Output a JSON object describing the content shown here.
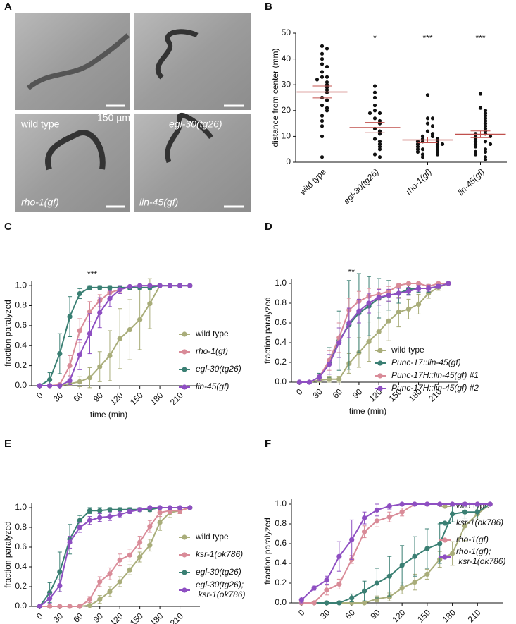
{
  "panel_a": {
    "panel": "A",
    "images": [
      "wild type",
      "egl-30(tg26)",
      "rho-1(gf)",
      "lin-45(gf)"
    ],
    "scale_bar": "150 µm"
  },
  "chart_data": [
    {
      "panel": "B",
      "type": "dotplot",
      "ylabel": "distance from center (mm)",
      "categories": [
        "wild type",
        "egl-30(tg26)",
        "rho-1(gf)",
        "lin-45(gf)"
      ],
      "significance": [
        null,
        "*",
        "***",
        "***"
      ],
      "values": [
        [
          45,
          44,
          42,
          40,
          38,
          37,
          35,
          33,
          33,
          32,
          31,
          30,
          29,
          28,
          27,
          25,
          24,
          22,
          21,
          20,
          18,
          16,
          14,
          10,
          2
        ],
        [
          29.5,
          27,
          25,
          22,
          20,
          19,
          19,
          17,
          16,
          15,
          13,
          12,
          11,
          9,
          8,
          7,
          6,
          5,
          3,
          2
        ],
        [
          26,
          17,
          17,
          15,
          14,
          12,
          11,
          10,
          10,
          9,
          9,
          8,
          8,
          8,
          7,
          7,
          7,
          6,
          6,
          5,
          5,
          5,
          4,
          4,
          3,
          3,
          2
        ],
        [
          26.5,
          21,
          20,
          19,
          18,
          17,
          16,
          15,
          14,
          13,
          12,
          11,
          11,
          10,
          10,
          9,
          8,
          8,
          7,
          7,
          6,
          5,
          4,
          4,
          3,
          2,
          1
        ]
      ],
      "means": [
        27.2,
        13.4,
        8.6,
        10.8
      ],
      "sem": [
        2.3,
        2.0,
        1.1,
        1.3
      ],
      "color": "#111111",
      "mean_color": "#c0504d",
      "ylim": [
        0,
        50
      ],
      "yticks": [
        0,
        10,
        20,
        30,
        40,
        50
      ]
    },
    {
      "panel": "C",
      "type": "line",
      "xlabel": "time (min)",
      "ylabel": "fraction paralyzed",
      "annotation": "***",
      "legend": "right",
      "x": [
        0,
        15,
        30,
        45,
        60,
        75,
        90,
        105,
        120,
        135,
        150,
        165,
        180,
        195,
        210,
        225
      ],
      "xlim": [
        -12,
        240
      ],
      "xticks": [
        0,
        30,
        60,
        90,
        120,
        150,
        180,
        210
      ],
      "ylim": [
        0,
        1.05
      ],
      "yticks": [
        {
          "value": 0,
          "label": "0.0"
        },
        0.2,
        0.4,
        0.6,
        0.8,
        {
          "value": 1,
          "label": "1.0"
        }
      ],
      "series": [
        {
          "name": "wild type",
          "color": "#a9ad7a",
          "values": [
            0,
            0,
            0,
            0.02,
            0.04,
            0.08,
            0.19,
            0.3,
            0.47,
            0.56,
            0.66,
            0.82,
            1,
            1,
            1,
            1
          ],
          "errors": [
            0,
            0,
            0,
            0.02,
            0.05,
            0.1,
            0.15,
            0.25,
            0.3,
            0.3,
            0.3,
            0.25,
            0,
            0,
            0,
            0
          ]
        },
        {
          "name": "rho-1(gf)",
          "color": "#d98b98",
          "values": [
            0,
            0,
            0.01,
            0.2,
            0.55,
            0.74,
            0.85,
            0.93,
            0.96,
            0.99,
            1,
            1,
            1,
            1,
            1,
            1
          ],
          "errors": [
            0,
            0,
            0.01,
            0.1,
            0.12,
            0.1,
            0.06,
            0.04,
            0.03,
            0.01,
            0,
            0,
            0,
            0,
            0,
            0
          ]
        },
        {
          "name": "egl-30(tg26)",
          "color": "#3a7f73",
          "values": [
            0,
            0.06,
            0.32,
            0.69,
            0.92,
            0.98,
            0.98,
            0.98,
            0.98,
            0.98,
            0.98,
            0.98,
            1,
            1,
            1,
            1
          ],
          "errors": [
            0,
            0.07,
            0.2,
            0.2,
            0.05,
            0.02,
            0.02,
            0.02,
            0.02,
            0.02,
            0.02,
            0.02,
            0,
            0,
            0,
            0
          ]
        },
        {
          "name": "lin-45(gf)",
          "color": "#8e4fc2",
          "values": [
            0,
            0,
            0,
            0.05,
            0.31,
            0.52,
            0.73,
            0.87,
            0.96,
            0.99,
            1,
            1,
            1,
            1,
            1,
            1
          ],
          "errors": [
            0,
            0,
            0,
            0.04,
            0.15,
            0.2,
            0.15,
            0.08,
            0.04,
            0.01,
            0,
            0,
            0,
            0,
            0,
            0
          ]
        }
      ]
    },
    {
      "panel": "D",
      "type": "line",
      "xlabel": "time (min)",
      "ylabel": "fraction paralyzed",
      "annotation": "**",
      "legend": "right",
      "x": [
        0,
        15,
        30,
        45,
        60,
        75,
        90,
        105,
        120,
        135,
        150,
        165,
        180,
        195,
        210,
        225
      ],
      "xlim": [
        -12,
        240
      ],
      "xticks": [
        0,
        30,
        60,
        90,
        120,
        150,
        180,
        210
      ],
      "ylim": [
        0,
        1.05
      ],
      "yticks": [
        {
          "value": 0,
          "label": "0.0"
        },
        0.2,
        0.4,
        0.6,
        0.8,
        {
          "value": 1,
          "label": "1.0"
        }
      ],
      "series": [
        {
          "name": "wild type",
          "color": "#a9ad7a",
          "values": [
            0,
            0,
            0.02,
            0.03,
            0.03,
            0.19,
            0.3,
            0.41,
            0.51,
            0.62,
            0.71,
            0.74,
            0.79,
            0.9,
            0.96,
            1
          ],
          "errors": [
            0,
            0,
            0.02,
            0.03,
            0.03,
            0.1,
            0.15,
            0.2,
            0.2,
            0.2,
            0.15,
            0.1,
            0.1,
            0.05,
            0.03,
            0
          ]
        },
        {
          "name": "Punc-17::lin-45(gf)",
          "color": "#3a7f73",
          "values": [
            0,
            0,
            0.05,
            0.2,
            0.42,
            0.58,
            0.7,
            0.77,
            0.85,
            0.88,
            0.9,
            0.94,
            0.95,
            0.95,
            0.97,
            1
          ],
          "errors": [
            0,
            0,
            0.04,
            0.15,
            0.3,
            0.45,
            0.4,
            0.3,
            0.2,
            0.15,
            0.1,
            0.05,
            0.04,
            0.04,
            0.02,
            0
          ]
        },
        {
          "name": "Punc-17H::lin-45(gf) #1",
          "color": "#d98b98",
          "values": [
            0,
            0,
            0.05,
            0.22,
            0.45,
            0.73,
            0.82,
            0.87,
            0.89,
            0.92,
            0.98,
            1,
            1,
            0.97,
            1,
            1
          ],
          "errors": [
            0,
            0,
            0.03,
            0.1,
            0.15,
            0.12,
            0.1,
            0.08,
            0.06,
            0.05,
            0.02,
            0,
            0,
            0.02,
            0,
            0
          ]
        },
        {
          "name": "Punc-17H::lin-45(gf) #2",
          "color": "#8e4fc2",
          "values": [
            0,
            0,
            0.05,
            0.18,
            0.4,
            0.6,
            0.72,
            0.8,
            0.86,
            0.88,
            0.9,
            0.92,
            0.95,
            0.95,
            0.97,
            1
          ],
          "errors": [
            0,
            0,
            0.03,
            0.1,
            0.15,
            0.15,
            0.12,
            0.1,
            0.08,
            0.06,
            0.05,
            0.04,
            0.03,
            0.03,
            0.02,
            0
          ]
        }
      ]
    },
    {
      "panel": "E",
      "type": "line",
      "xlabel": "time (min)",
      "ylabel": "fraction paralyzed",
      "legend": "right",
      "x": [
        0,
        15,
        30,
        45,
        60,
        75,
        90,
        105,
        120,
        135,
        150,
        165,
        180,
        195,
        210,
        225
      ],
      "xlim": [
        -12,
        240
      ],
      "xticks": [
        0,
        30,
        60,
        90,
        120,
        150,
        180,
        210
      ],
      "ylim": [
        0,
        1.05
      ],
      "yticks": [
        {
          "value": 0,
          "label": "0.0"
        },
        0.2,
        0.4,
        0.6,
        0.8,
        {
          "value": 1,
          "label": "1.0"
        }
      ],
      "series": [
        {
          "name": "wild type",
          "color": "#a9ad7a",
          "values": [
            0,
            0,
            0,
            0,
            0,
            0.01,
            0.07,
            0.15,
            0.25,
            0.37,
            0.5,
            0.62,
            0.85,
            0.95,
            0.97,
            1
          ],
          "errors": [
            0,
            0,
            0,
            0,
            0,
            0.01,
            0.04,
            0.05,
            0.05,
            0.05,
            0.05,
            0.06,
            0.08,
            0.05,
            0.03,
            0
          ]
        },
        {
          "name": "ksr-1(ok786)",
          "color": "#d98b98",
          "values": [
            0,
            0,
            0,
            0,
            0,
            0.07,
            0.25,
            0.33,
            0.47,
            0.52,
            0.65,
            0.81,
            0.95,
            0.97,
            0.97,
            1
          ],
          "errors": [
            0,
            0,
            0,
            0,
            0,
            0.03,
            0.05,
            0.06,
            0.06,
            0.06,
            0.06,
            0.06,
            0.04,
            0.03,
            0.03,
            0
          ]
        },
        {
          "name": "egl-30(tg26)",
          "color": "#3a7f73",
          "values": [
            0,
            0.14,
            0.35,
            0.68,
            0.87,
            0.97,
            0.97,
            0.98,
            0.98,
            0.98,
            0.98,
            0.98,
            1,
            1,
            1,
            1
          ],
          "errors": [
            0,
            0.1,
            0.2,
            0.15,
            0.05,
            0.03,
            0.03,
            0.02,
            0.02,
            0.02,
            0.02,
            0.02,
            0,
            0,
            0,
            0
          ]
        },
        {
          "name": "egl-30(tg26); ksr-1(ok786)",
          "color": "#8e4fc2",
          "values": [
            0,
            0.08,
            0.21,
            0.65,
            0.8,
            0.87,
            0.9,
            0.91,
            0.93,
            0.96,
            0.98,
            1,
            1,
            1,
            1,
            1
          ],
          "errors": [
            0,
            0.05,
            0.06,
            0.06,
            0.05,
            0.04,
            0.04,
            0.04,
            0.03,
            0.02,
            0.01,
            0,
            0,
            0,
            0,
            0
          ]
        }
      ]
    },
    {
      "panel": "F",
      "type": "line",
      "xlabel": "time (min)",
      "ylabel": "fraction paralyzed",
      "legend": "right",
      "x": [
        0,
        15,
        30,
        45,
        60,
        75,
        90,
        105,
        120,
        135,
        150,
        165,
        180,
        195,
        210,
        225
      ],
      "xlim": [
        -12,
        240
      ],
      "xticks": [
        0,
        30,
        60,
        90,
        120,
        150,
        180,
        210
      ],
      "ylim": [
        0,
        1.05
      ],
      "yticks": [
        {
          "value": 0,
          "label": "0.0"
        },
        0.2,
        0.4,
        0.6,
        0.8,
        {
          "value": 1,
          "label": "1.0"
        }
      ],
      "series": [
        {
          "name": "wild type",
          "color": "#a9ad7a",
          "values": [
            0,
            0,
            0,
            0,
            0,
            0,
            0.04,
            0.06,
            0.15,
            0.21,
            0.29,
            0.44,
            0.5,
            0.78,
            0.9,
            1
          ],
          "errors": [
            0,
            0,
            0,
            0,
            0,
            0,
            0.03,
            0.04,
            0.06,
            0.08,
            0.05,
            0.08,
            0.12,
            0.15,
            0.06,
            0
          ]
        },
        {
          "name": "ksr-1(ok786)",
          "color": "#3a7f73",
          "values": [
            0,
            0,
            0,
            0,
            0.05,
            0.12,
            0.2,
            0.27,
            0.38,
            0.47,
            0.55,
            0.6,
            0.9,
            0.92,
            0.92,
            1
          ],
          "errors": [
            0,
            0,
            0,
            0,
            0.04,
            0.1,
            0.15,
            0.2,
            0.2,
            0.2,
            0.2,
            0.2,
            0.08,
            0.06,
            0.06,
            0
          ]
        },
        {
          "name": "rho-1(gf)",
          "color": "#d98b98",
          "values": [
            0,
            0,
            0.13,
            0.19,
            0.44,
            0.72,
            0.83,
            0.87,
            0.92,
            1,
            1,
            1,
            1,
            1,
            1,
            1
          ],
          "errors": [
            0,
            0,
            0.05,
            0.05,
            0.04,
            0.06,
            0.06,
            0.05,
            0.04,
            0,
            0,
            0,
            0,
            0,
            0,
            0
          ]
        },
        {
          "name": "rho-1(gf); ksr-1(ok786)",
          "color": "#8e4fc2",
          "values": [
            0.03,
            0.15,
            0.23,
            0.47,
            0.64,
            0.86,
            0.94,
            0.98,
            1,
            1,
            1,
            1,
            1,
            1,
            1,
            1
          ],
          "errors": [
            0.03,
            0.02,
            0.04,
            0.15,
            0.2,
            0.06,
            0.06,
            0.03,
            0,
            0,
            0,
            0,
            0,
            0,
            0,
            0
          ]
        }
      ]
    }
  ]
}
